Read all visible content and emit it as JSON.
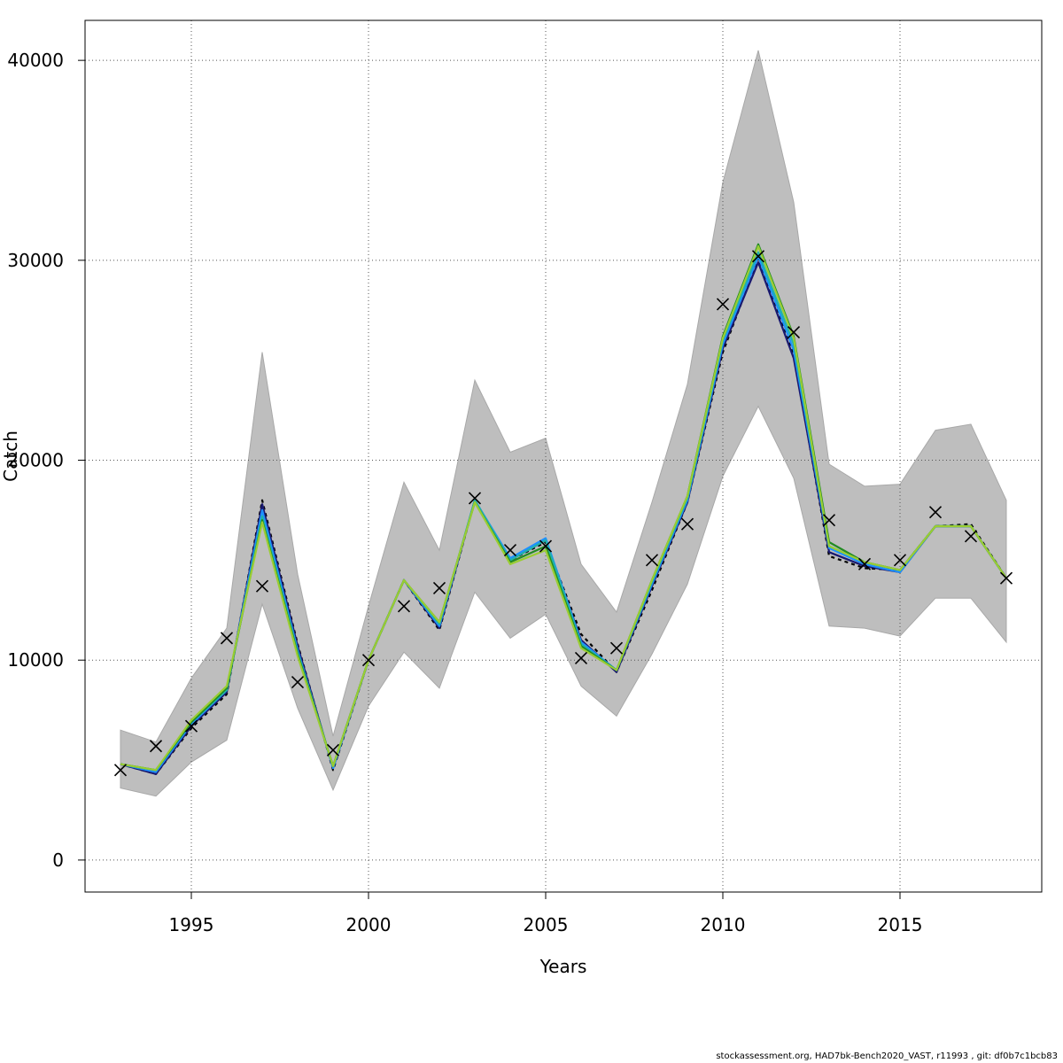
{
  "chart_data": {
    "type": "line",
    "title": "",
    "xlabel": "Years",
    "ylabel": "Catch",
    "xlim": [
      1992.0,
      2019.0
    ],
    "ylim": [
      -1600,
      42000
    ],
    "xticks": [
      1995,
      2000,
      2005,
      2010,
      2015
    ],
    "yticks": [
      0,
      10000,
      20000,
      30000,
      40000
    ],
    "grid": true,
    "legend": "none",
    "years": [
      1993,
      1994,
      1995,
      1996,
      1997,
      1998,
      1999,
      2000,
      2001,
      2002,
      2003,
      2004,
      2005,
      2006,
      2007,
      2008,
      2009,
      2010,
      2011,
      2012,
      2013,
      2014,
      2015,
      2016,
      2017,
      2018
    ],
    "band": {
      "color": "#bebebe",
      "upper": [
        6500,
        5900,
        9100,
        11600,
        25400,
        14300,
        6200,
        12700,
        18900,
        15500,
        24000,
        20400,
        21100,
        14800,
        12400,
        17900,
        23800,
        33900,
        40500,
        32900,
        19800,
        18700,
        18800,
        21500,
        21800,
        18000
      ],
      "lower": [
        3600,
        3200,
        4900,
        6000,
        12800,
        7600,
        3500,
        7700,
        10400,
        8600,
        13400,
        11100,
        12300,
        8700,
        7200,
        10300,
        13800,
        19200,
        22700,
        19100,
        11700,
        11600,
        11200,
        13100,
        13100,
        10900
      ]
    },
    "observed": {
      "marker": "x",
      "color": "#000000",
      "values": [
        4500,
        5700,
        6700,
        11100,
        13700,
        8900,
        5500,
        10000,
        12700,
        13600,
        18100,
        15500,
        15700,
        10100,
        10600,
        15000,
        16800,
        27800,
        30200,
        26400,
        17000,
        14800,
        15000,
        17400,
        16200,
        14100
      ]
    },
    "series": [
      {
        "color": "#000000",
        "dash": "4,4",
        "values": [
          4800,
          4300,
          6600,
          8300,
          18000,
          10800,
          4500,
          10000,
          14000,
          11500,
          18000,
          15000,
          15900,
          11300,
          9400,
          13500,
          17900,
          25400,
          30100,
          25300,
          15200,
          14600,
          14500,
          16700,
          16800,
          14100
        ]
      },
      {
        "color": "#191970",
        "values": [
          4800,
          4300,
          6700,
          8400,
          17800,
          10700,
          4600,
          10000,
          14000,
          11600,
          18000,
          15000,
          16000,
          11000,
          9400,
          13700,
          17900,
          25600,
          29900,
          25100,
          15400,
          14700,
          14400,
          16700,
          16700,
          14100
        ]
      },
      {
        "color": "#1e90ff",
        "values": [
          4800,
          4400,
          6800,
          8500,
          17500,
          10500,
          4600,
          10000,
          14000,
          11700,
          18000,
          15100,
          16100,
          10900,
          9500,
          13800,
          18000,
          25800,
          30200,
          25500,
          15600,
          14800,
          14400,
          16700,
          16700,
          14100
        ]
      },
      {
        "color": "#20b2aa",
        "values": [
          4800,
          4500,
          6900,
          8500,
          17200,
          10400,
          4700,
          10000,
          14000,
          11800,
          18000,
          15000,
          16000,
          10800,
          9500,
          13900,
          18100,
          26000,
          30400,
          25800,
          15700,
          14900,
          14500,
          16700,
          16700,
          14100
        ]
      },
      {
        "color": "#228b22",
        "values": [
          4800,
          4500,
          6900,
          8600,
          17000,
          10300,
          4700,
          10000,
          14000,
          11900,
          17900,
          14900,
          15700,
          10700,
          9500,
          14000,
          18200,
          26200,
          30800,
          26200,
          15900,
          14900,
          14500,
          16700,
          16700,
          14100
        ]
      },
      {
        "color": "#9acd32",
        "values": [
          4800,
          4500,
          7000,
          8700,
          16900,
          10200,
          4700,
          10000,
          14000,
          11900,
          17900,
          14800,
          15500,
          10600,
          9500,
          14000,
          18200,
          26100,
          30700,
          26100,
          15700,
          14900,
          14500,
          16700,
          16700,
          14100
        ]
      }
    ]
  },
  "footer": {
    "text": "stockassessment.org, HAD7bk-Bench2020_VAST, r11993 , git: df0b7c1bcb83"
  }
}
